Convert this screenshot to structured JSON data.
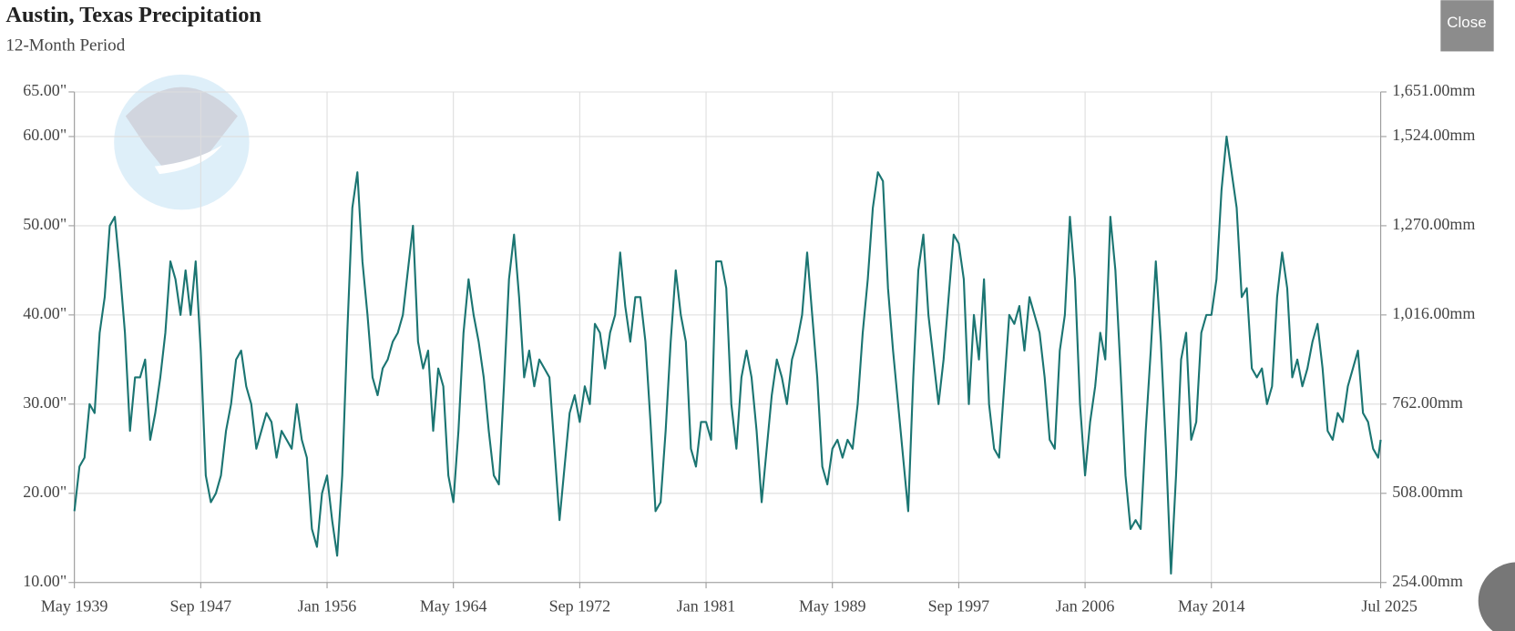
{
  "ui": {
    "close": "Close"
  },
  "chart_data": {
    "type": "line",
    "title": "Austin, Texas Precipitation",
    "subtitle": "12-Month Period",
    "x": [
      "May 1939",
      "Sep 1939",
      "Jan 1940",
      "May 1940",
      "Sep 1940",
      "Jan 1941",
      "May 1941",
      "Sep 1941",
      "Jan 1942",
      "May 1942",
      "Sep 1942",
      "Jan 1943",
      "May 1943",
      "Sep 1943",
      "Jan 1944",
      "May 1944",
      "Sep 1944",
      "Jan 1945",
      "May 1945",
      "Sep 1945",
      "Jan 1946",
      "May 1946",
      "Sep 1946",
      "Jan 1947",
      "May 1947",
      "Sep 1947",
      "Jan 1948",
      "May 1948",
      "Sep 1948",
      "Jan 1949",
      "May 1949",
      "Sep 1949",
      "Jan 1950",
      "May 1950",
      "Sep 1950",
      "Jan 1951",
      "May 1951",
      "Sep 1951",
      "Jan 1952",
      "May 1952",
      "Sep 1952",
      "Jan 1953",
      "May 1953",
      "Sep 1953",
      "Jan 1954",
      "May 1954",
      "Sep 1954",
      "Jan 1955",
      "May 1955",
      "Sep 1955",
      "Jan 1956",
      "May 1956",
      "Sep 1956",
      "Jan 1957",
      "May 1957",
      "Sep 1957",
      "Jan 1958",
      "May 1958",
      "Sep 1958",
      "Jan 1959",
      "May 1959",
      "Sep 1959",
      "Jan 1960",
      "May 1960",
      "Sep 1960",
      "Jan 1961",
      "May 1961",
      "Sep 1961",
      "Jan 1962",
      "May 1962",
      "Sep 1962",
      "Jan 1963",
      "May 1963",
      "Sep 1963",
      "Jan 1964",
      "May 1964",
      "Sep 1964",
      "Jan 1965",
      "May 1965",
      "Sep 1965",
      "Jan 1966",
      "May 1966",
      "Sep 1966",
      "Jan 1967",
      "May 1967",
      "Sep 1967",
      "Jan 1968",
      "May 1968",
      "Sep 1968",
      "Jan 1969",
      "May 1969",
      "Sep 1969",
      "Jan 1970",
      "May 1970",
      "Sep 1970",
      "Jan 1971",
      "May 1971",
      "Sep 1971",
      "Jan 1972",
      "May 1972",
      "Sep 1972",
      "Jan 1973",
      "May 1973",
      "Sep 1973",
      "Jan 1974",
      "May 1974",
      "Sep 1974",
      "Jan 1975",
      "May 1975",
      "Sep 1975",
      "Jan 1976",
      "May 1976",
      "Sep 1976",
      "Jan 1977",
      "May 1977",
      "Sep 1977",
      "Jan 1978",
      "May 1978",
      "Sep 1978",
      "Jan 1979",
      "May 1979",
      "Sep 1979",
      "Jan 1980",
      "May 1980",
      "Sep 1980",
      "Jan 1981",
      "May 1981",
      "Sep 1981",
      "Jan 1982",
      "May 1982",
      "Sep 1982",
      "Jan 1983",
      "May 1983",
      "Sep 1983",
      "Jan 1984",
      "May 1984",
      "Sep 1984",
      "Jan 1985",
      "May 1985",
      "Sep 1985",
      "Jan 1986",
      "May 1986",
      "Sep 1986",
      "Jan 1987",
      "May 1987",
      "Sep 1987",
      "Jan 1988",
      "May 1988",
      "Sep 1988",
      "Jan 1989",
      "May 1989",
      "Sep 1989",
      "Jan 1990",
      "May 1990",
      "Sep 1990",
      "Jan 1991",
      "May 1991",
      "Sep 1991",
      "Jan 1992",
      "May 1992",
      "Sep 1992",
      "Jan 1993",
      "May 1993",
      "Sep 1993",
      "Jan 1994",
      "May 1994",
      "Sep 1994",
      "Jan 1995",
      "May 1995",
      "Sep 1995",
      "Jan 1996",
      "May 1996",
      "Sep 1996",
      "Jan 1997",
      "May 1997",
      "Sep 1997",
      "Jan 1998",
      "May 1998",
      "Sep 1998",
      "Jan 1999",
      "May 1999",
      "Sep 1999",
      "Jan 2000",
      "May 2000",
      "Sep 2000",
      "Jan 2001",
      "May 2001",
      "Sep 2001",
      "Jan 2002",
      "May 2002",
      "Sep 2002",
      "Jan 2003",
      "May 2003",
      "Sep 2003",
      "Jan 2004",
      "May 2004",
      "Sep 2004",
      "Jan 2005",
      "May 2005",
      "Sep 2005",
      "Jan 2006",
      "May 2006",
      "Sep 2006",
      "Jan 2007",
      "May 2007",
      "Sep 2007",
      "Jan 2008",
      "May 2008",
      "Sep 2008",
      "Jan 2009",
      "May 2009",
      "Sep 2009",
      "Jan 2010",
      "May 2010",
      "Sep 2010",
      "Jan 2011",
      "May 2011",
      "Sep 2011",
      "Jan 2012",
      "May 2012",
      "Sep 2012",
      "Jan 2013",
      "May 2013",
      "Sep 2013",
      "Jan 2014",
      "May 2014",
      "Sep 2014",
      "Jan 2015",
      "May 2015",
      "Sep 2015",
      "Jan 2016",
      "May 2016",
      "Sep 2016",
      "Jan 2017",
      "May 2017",
      "Sep 2017",
      "Jan 2018",
      "May 2018",
      "Sep 2018",
      "Jan 2019",
      "May 2019",
      "Sep 2019",
      "Jan 2020",
      "May 2020",
      "Sep 2020",
      "Jan 2021",
      "May 2021",
      "Sep 2021",
      "Jan 2022",
      "May 2022",
      "Sep 2022",
      "Jan 2023",
      "May 2023",
      "Sep 2023",
      "Jan 2024",
      "May 2024",
      "Sep 2024",
      "Jan 2025",
      "May 2025",
      "Jul 2025"
    ],
    "series": [
      {
        "color": "#1b7572",
        "values": [
          18,
          23,
          24,
          30,
          29,
          38,
          42,
          50,
          51,
          45,
          38,
          27,
          33,
          33,
          35,
          26,
          29,
          33,
          38,
          46,
          44,
          40,
          45,
          40,
          46,
          36,
          22,
          19,
          20,
          22,
          27,
          30,
          35,
          36,
          32,
          30,
          25,
          27,
          29,
          28,
          24,
          27,
          26,
          25,
          30,
          26,
          24,
          16,
          14,
          20,
          22,
          17,
          13,
          22,
          38,
          52,
          56,
          46,
          40,
          33,
          31,
          34,
          35,
          37,
          38,
          40,
          45,
          50,
          37,
          34,
          36,
          27,
          34,
          32,
          22,
          19,
          27,
          38,
          44,
          40,
          37,
          33,
          27,
          22,
          21,
          32,
          44,
          49,
          42,
          33,
          36,
          32,
          35,
          34,
          33,
          25,
          17,
          23,
          29,
          31,
          28,
          32,
          30,
          39,
          38,
          34,
          38,
          40,
          47,
          41,
          37,
          42,
          42,
          37,
          28,
          18,
          19,
          27,
          37,
          45,
          40,
          37,
          25,
          23,
          28,
          28,
          26,
          46,
          46,
          43,
          30,
          25,
          33,
          36,
          33,
          27,
          19,
          25,
          31,
          35,
          33,
          30,
          35,
          37,
          40,
          47,
          40,
          33,
          23,
          21,
          25,
          26,
          24,
          26,
          25,
          30,
          38,
          44,
          52,
          56,
          55,
          43,
          36,
          30,
          24,
          18,
          33,
          45,
          49,
          40,
          35,
          30,
          35,
          42,
          49,
          48,
          44,
          30,
          40,
          35,
          44,
          30,
          25,
          24,
          32,
          40,
          39,
          41,
          36,
          42,
          40,
          38,
          33,
          26,
          25,
          36,
          40,
          51,
          44,
          30,
          22,
          28,
          32,
          38,
          35,
          51,
          45,
          34,
          22,
          16,
          17,
          16,
          27,
          36,
          46,
          37,
          25,
          11,
          22,
          35,
          38,
          26,
          28,
          38,
          40,
          40,
          44,
          54,
          60,
          56,
          52,
          42,
          43,
          34,
          33,
          34,
          30,
          32,
          42,
          47,
          43,
          33,
          35,
          32,
          34,
          37,
          39,
          34,
          27,
          26,
          29,
          28,
          32,
          34,
          36,
          29,
          28,
          25,
          24,
          26
        ]
      }
    ],
    "xlim": [
      "May 1939",
      "Jul 2025"
    ],
    "xticks": [
      "May 1939",
      "Sep 1947",
      "Jan 1956",
      "May 1964",
      "Sep 1972",
      "Jan 1981",
      "May 1989",
      "Sep 1997",
      "Jan 2006",
      "May 2014",
      "Jul 2025"
    ],
    "ylim": [
      10,
      65
    ],
    "yticks": [
      {
        "value": 10,
        "label": "10.00\""
      },
      {
        "value": 20,
        "label": "20.00\""
      },
      {
        "value": 30,
        "label": "30.00\""
      },
      {
        "value": 40,
        "label": "40.00\""
      },
      {
        "value": 50,
        "label": "50.00\""
      },
      {
        "value": 60,
        "label": "60.00\""
      },
      {
        "value": 65,
        "label": "65.00\""
      }
    ],
    "y2lim": [
      254,
      1651
    ],
    "y2ticks": [
      {
        "value": 254,
        "label": "254.00mm"
      },
      {
        "value": 508,
        "label": "508.00mm"
      },
      {
        "value": 762,
        "label": "762.00mm"
      },
      {
        "value": 1016,
        "label": "1,016.00mm"
      },
      {
        "value": 1270,
        "label": "1,270.00mm"
      },
      {
        "value": 1524,
        "label": "1,524.00mm"
      },
      {
        "value": 1651,
        "label": "1,651.00mm"
      }
    ],
    "grid": true
  }
}
